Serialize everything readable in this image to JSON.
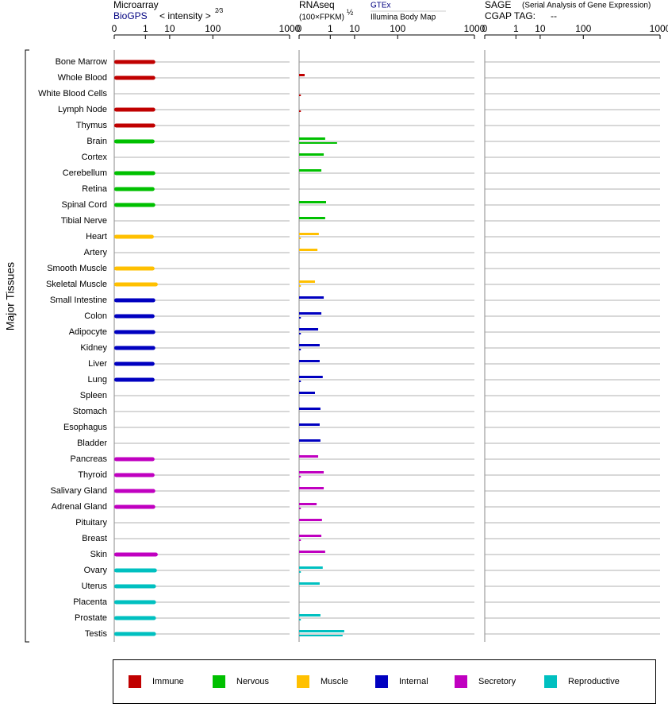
{
  "chart_data": {
    "type": "bar",
    "y_label": "Major Tissues",
    "categories": [
      "Bone Marrow",
      "Whole Blood",
      "White Blood Cells",
      "Lymph Node",
      "Thymus",
      "Brain",
      "Cortex",
      "Cerebellum",
      "Retina",
      "Spinal Cord",
      "Tibial Nerve",
      "Heart",
      "Artery",
      "Smooth Muscle",
      "Skeletal Muscle",
      "Small Intestine",
      "Colon",
      "Adipocyte",
      "Kidney",
      "Liver",
      "Lung",
      "Spleen",
      "Stomach",
      "Esophagus",
      "Bladder",
      "Pancreas",
      "Thyroid",
      "Salivary Gland",
      "Adrenal Gland",
      "Pituitary",
      "Breast",
      "Skin",
      "Ovary",
      "Uterus",
      "Placenta",
      "Prostate",
      "Testis"
    ],
    "bar_colors": [
      "#c00000",
      "#c00000",
      "#c00000",
      "#c00000",
      "#c00000",
      "#00c000",
      "#00c000",
      "#00c000",
      "#00c000",
      "#00c000",
      "#00c000",
      "#ffc000",
      "#ffc000",
      "#ffc000",
      "#ffc000",
      "#0000c0",
      "#0000c0",
      "#0000c0",
      "#0000c0",
      "#0000c0",
      "#0000c0",
      "#0000c0",
      "#0000c0",
      "#0000c0",
      "#0000c0",
      "#c000c0",
      "#c000c0",
      "#c000c0",
      "#c000c0",
      "#c000c0",
      "#c000c0",
      "#c000c0",
      "#00c0c0",
      "#00c0c0",
      "#00c0c0",
      "#00c0c0",
      "#00c0c0"
    ],
    "legend": [
      {
        "name": "Immune",
        "color": "#c00000"
      },
      {
        "name": "Nervous",
        "color": "#00c000"
      },
      {
        "name": "Muscle",
        "color": "#ffc000"
      },
      {
        "name": "Internal",
        "color": "#0000c0"
      },
      {
        "name": "Secretory",
        "color": "#c000c0"
      },
      {
        "name": "Reproductive",
        "color": "#00c0c0"
      }
    ],
    "panels": [
      {
        "type": "bar",
        "title": "Microarray",
        "subtitle": "BioGPS",
        "axis_label": "< intensity >",
        "axis_power": "2⁄3",
        "xlim": [
          0,
          1000
        ],
        "xticks": [
          0,
          1,
          10,
          100,
          1000
        ],
        "series": [
          {
            "values": [
              3,
              3,
              null,
              3,
              3,
              2.8,
              null,
              3,
              2.8,
              3,
              null,
              2.6,
              null,
              2.8,
              3.8,
              3,
              2.8,
              3,
              3,
              2.8,
              2.8,
              null,
              null,
              null,
              null,
              2.8,
              2.8,
              3,
              3,
              null,
              null,
              3.8,
              3.5,
              3.2,
              3.2,
              3.2,
              3.2
            ]
          }
        ]
      },
      {
        "type": "bar",
        "title": "RNAseq",
        "axis_label": "(100×FPKM)",
        "axis_power": "½",
        "xlim": [
          0,
          1000
        ],
        "xticks": [
          0,
          1,
          10,
          100,
          1000
        ],
        "series": [
          {
            "name": "GTEx",
            "values": [
              null,
              0.001,
              null,
              null,
              null,
              0.49,
              0.39,
              0.26,
              null,
              0.56,
              0.49,
              0.16,
              0.12,
              null,
              0.067,
              0.39,
              0.26,
              0.14,
              0.19,
              0.19,
              0.33,
              0.067,
              0.22,
              0.19,
              0.22,
              0.14,
              0.39,
              0.39,
              0.1,
              0.29,
              0.26,
              0.49,
              0.33,
              0.19,
              null,
              0.22,
              4.4
            ]
          },
          {
            "name": "Illumina Body Map",
            "values": [
              null,
              null,
              1e-05,
              1e-05,
              null,
              2.2,
              null,
              null,
              null,
              null,
              null,
              1e-05,
              null,
              null,
              1e-05,
              null,
              1e-05,
              1e-05,
              1e-05,
              null,
              1e-05,
              null,
              null,
              null,
              null,
              null,
              1e-05,
              null,
              1e-05,
              null,
              1e-05,
              null,
              1e-05,
              null,
              null,
              1e-05,
              3.8
            ]
          }
        ]
      },
      {
        "type": "bar",
        "title": "SAGE",
        "subtitle": "(Serial Analysis of Gene Expression)",
        "tag_label": "CGAP TAG:",
        "tag": "--",
        "xlim": [
          0,
          1000
        ],
        "xticks": [
          0,
          1,
          10,
          100,
          1000
        ],
        "series": []
      }
    ]
  }
}
